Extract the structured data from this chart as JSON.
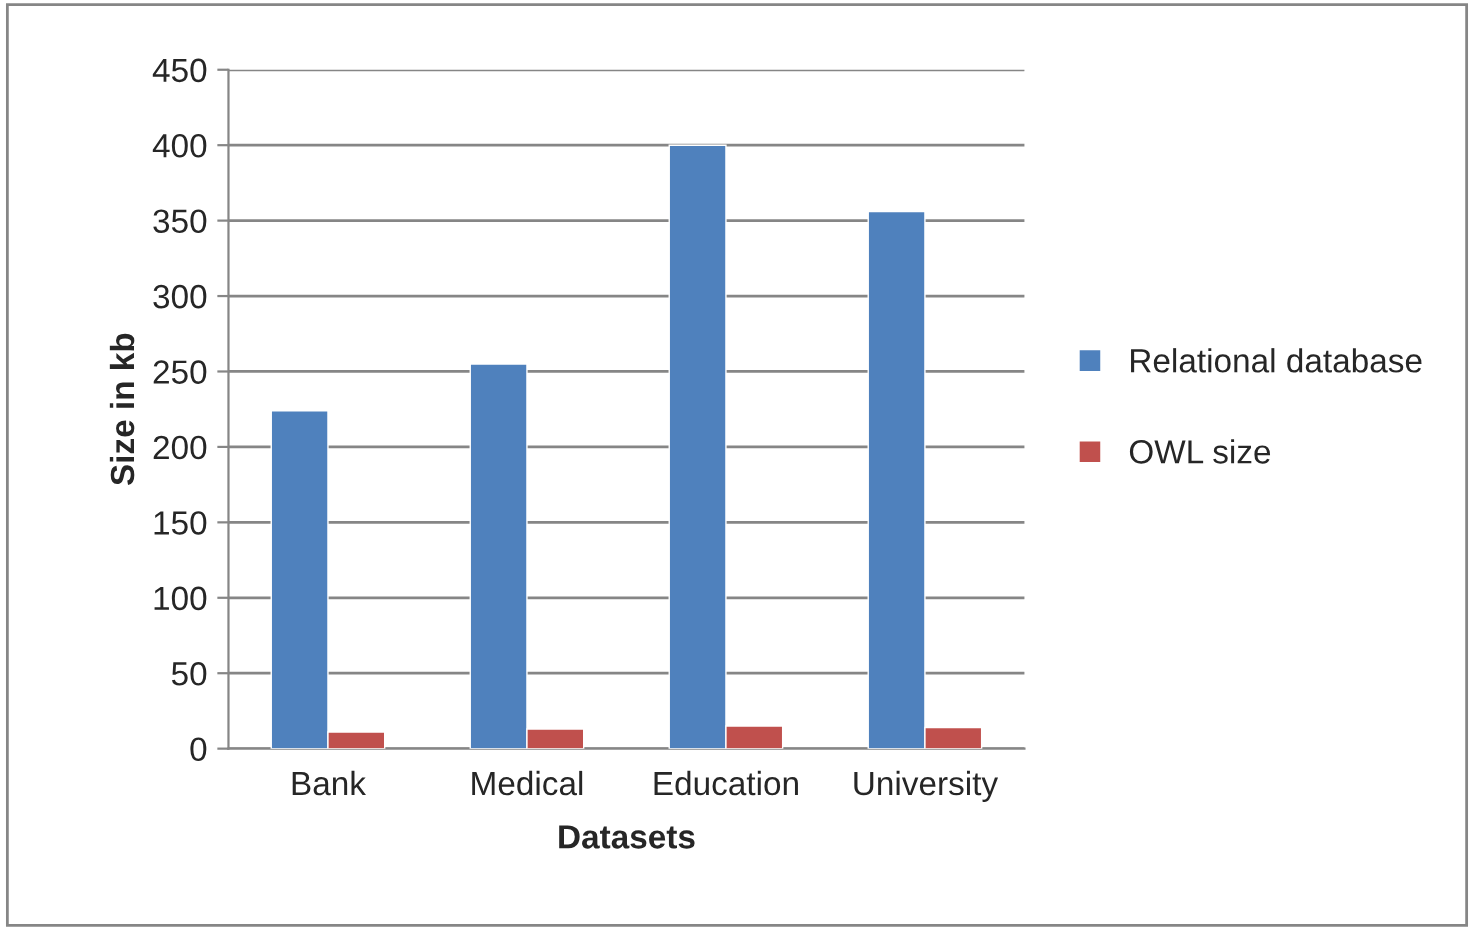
{
  "chart_data": {
    "type": "bar",
    "xlabel": "Datasets",
    "ylabel": "Size in kb",
    "categories": [
      "Bank",
      "Medical",
      "Education",
      "University"
    ],
    "series": [
      {
        "name": "Relational database",
        "color": "#4f81bd",
        "values": [
          224,
          255,
          400,
          356
        ]
      },
      {
        "name": "OWL size",
        "color": "#c0504d",
        "values": [
          11,
          13,
          15,
          14
        ]
      }
    ],
    "ylim": [
      0,
      450
    ],
    "yticks": [
      0,
      50,
      100,
      150,
      200,
      250,
      300,
      350,
      400,
      450
    ],
    "grid": "y",
    "legend": "right"
  }
}
